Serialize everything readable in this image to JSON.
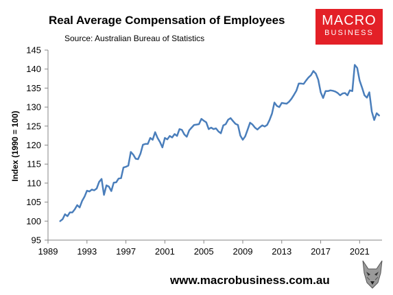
{
  "title": "Real Average Compensation of Employees",
  "subtitle": "Source: Australian Bureau of Statistics",
  "logo": {
    "line1": "MACRO",
    "line2": "BUSINESS"
  },
  "footer_url": "www.macrobusiness.com.au",
  "colors": {
    "line": "#4a7ebb",
    "logo_red": "#e32027",
    "axis": "#868686"
  },
  "chart_data": {
    "type": "line",
    "ylabel": "Index (1990 = 100)",
    "xlabel": "",
    "ylim": [
      95,
      145
    ],
    "xlim": [
      1989,
      2023.3
    ],
    "yticks": [
      95,
      100,
      105,
      110,
      115,
      120,
      125,
      130,
      135,
      140,
      145
    ],
    "xticks": [
      1989,
      1993,
      1997,
      2001,
      2005,
      2009,
      2013,
      2017,
      2021
    ],
    "grid": false,
    "series": [
      {
        "name": "",
        "x": [
          1990.25,
          1990.5,
          1990.75,
          1991.0,
          1991.25,
          1991.5,
          1991.75,
          1992.0,
          1992.25,
          1992.5,
          1992.75,
          1993.0,
          1993.25,
          1993.5,
          1993.75,
          1994.0,
          1994.25,
          1994.5,
          1994.75,
          1995.0,
          1995.25,
          1995.5,
          1995.75,
          1996.0,
          1996.25,
          1996.5,
          1996.75,
          1997.0,
          1997.25,
          1997.5,
          1997.75,
          1998.0,
          1998.25,
          1998.5,
          1998.75,
          1999.0,
          1999.25,
          1999.5,
          1999.75,
          2000.0,
          2000.25,
          2000.5,
          2000.75,
          2001.0,
          2001.25,
          2001.5,
          2001.75,
          2002.0,
          2002.25,
          2002.5,
          2002.75,
          2003.0,
          2003.25,
          2003.5,
          2003.75,
          2004.0,
          2004.25,
          2004.5,
          2004.75,
          2005.0,
          2005.25,
          2005.5,
          2005.75,
          2006.0,
          2006.25,
          2006.5,
          2006.75,
          2007.0,
          2007.25,
          2007.5,
          2007.75,
          2008.0,
          2008.25,
          2008.5,
          2008.75,
          2009.0,
          2009.25,
          2009.5,
          2009.75,
          2010.0,
          2010.25,
          2010.5,
          2010.75,
          2011.0,
          2011.25,
          2011.5,
          2011.75,
          2012.0,
          2012.25,
          2012.5,
          2012.75,
          2013.0,
          2013.25,
          2013.5,
          2013.75,
          2014.0,
          2014.25,
          2014.5,
          2014.75,
          2015.0,
          2015.25,
          2015.5,
          2015.75,
          2016.0,
          2016.25,
          2016.5,
          2016.75,
          2017.0,
          2017.25,
          2017.5,
          2017.75,
          2018.0,
          2018.25,
          2018.5,
          2018.75,
          2019.0,
          2019.25,
          2019.5,
          2019.75,
          2020.0,
          2020.25,
          2020.5,
          2020.75,
          2021.0,
          2021.25,
          2021.5,
          2021.75,
          2022.0,
          2022.25,
          2022.5,
          2022.75,
          2023.0
        ],
        "values": [
          100.0,
          100.5,
          101.8,
          101.3,
          102.3,
          102.3,
          103.1,
          104.2,
          103.6,
          105.3,
          106.4,
          108.0,
          107.8,
          108.3,
          108.1,
          108.6,
          110.3,
          111.1,
          106.9,
          109.4,
          109.1,
          107.9,
          110.1,
          110.2,
          111.2,
          111.3,
          114.1,
          114.3,
          114.6,
          118.2,
          117.5,
          116.4,
          116.3,
          117.8,
          120.1,
          120.3,
          120.3,
          121.9,
          121.4,
          123.4,
          121.9,
          120.8,
          119.4,
          121.9,
          121.5,
          122.4,
          122.0,
          122.9,
          122.4,
          124.2,
          124.0,
          122.8,
          122.2,
          123.9,
          124.6,
          125.3,
          125.4,
          125.5,
          126.9,
          126.4,
          126.0,
          124.2,
          124.6,
          124.2,
          124.4,
          123.6,
          123.1,
          125.2,
          125.5,
          126.7,
          127.1,
          126.3,
          125.6,
          125.3,
          122.5,
          121.4,
          122.3,
          124.1,
          125.9,
          125.4,
          124.6,
          124.1,
          124.7,
          125.2,
          124.9,
          125.3,
          126.6,
          128.3,
          131.2,
          130.3,
          130.0,
          131.1,
          131.0,
          130.9,
          131.4,
          132.2,
          133.2,
          134.3,
          136.2,
          136.2,
          136.1,
          137.0,
          137.8,
          138.4,
          139.5,
          138.8,
          137.2,
          133.9,
          132.4,
          134.2,
          134.2,
          134.4,
          134.3,
          134.1,
          133.7,
          133.1,
          133.6,
          133.7,
          133.1,
          134.4,
          134.2,
          141.1,
          140.3,
          137.0,
          135.1,
          133.1,
          132.5,
          133.9,
          128.8,
          126.6,
          128.4,
          127.8
        ]
      }
    ]
  }
}
